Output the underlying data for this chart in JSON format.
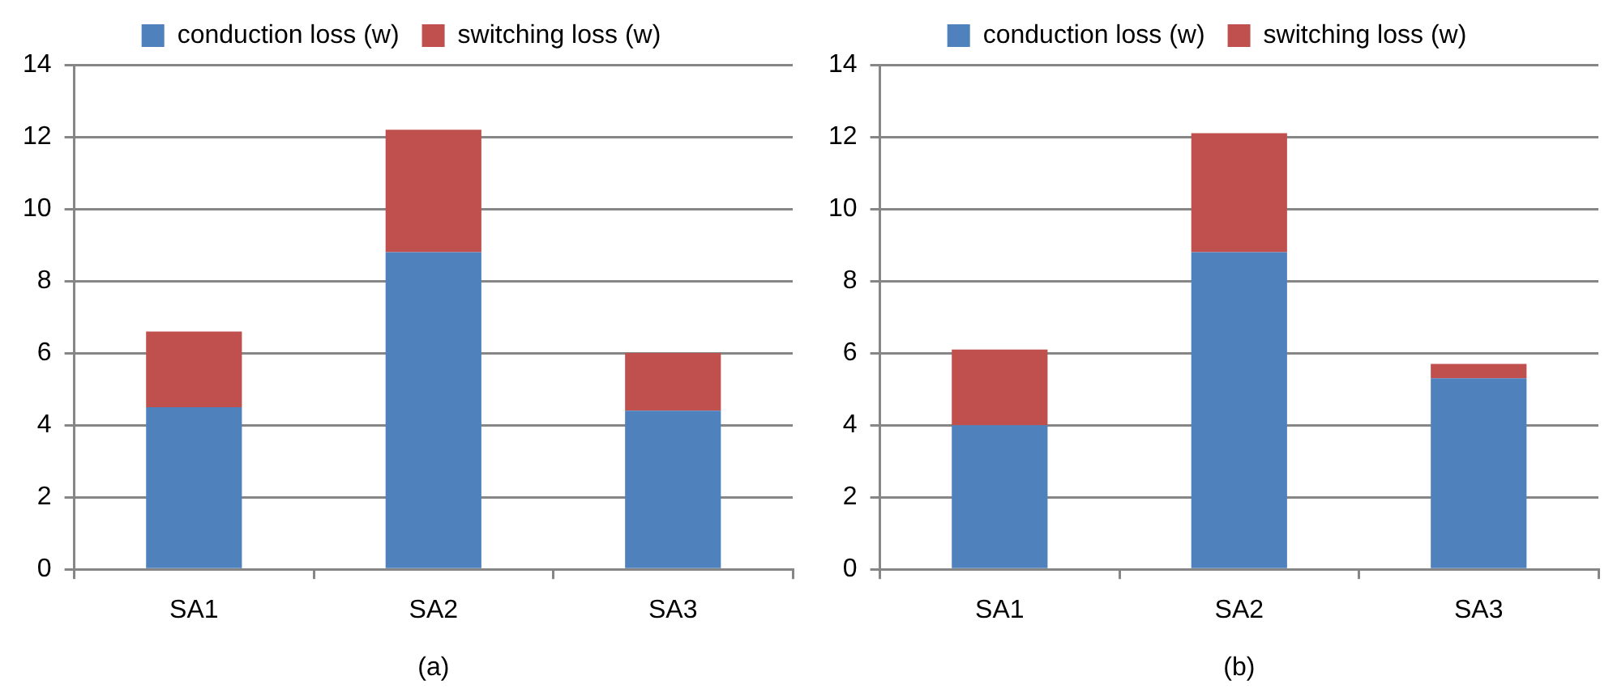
{
  "chart_data": [
    {
      "type": "bar",
      "stacked": true,
      "xlabel": "(a)",
      "categories": [
        "SA1",
        "SA2",
        "SA3"
      ],
      "series": [
        {
          "name": "conduction loss (w)",
          "color": "#4f81bd",
          "values": [
            4.5,
            8.8,
            4.4
          ]
        },
        {
          "name": "switching loss (w)",
          "color": "#c0504d",
          "values": [
            2.1,
            3.4,
            1.6
          ]
        }
      ],
      "ylim": [
        0,
        14
      ],
      "yticks": [
        0,
        2,
        4,
        6,
        8,
        10,
        12,
        14
      ],
      "grid": "y",
      "legend": "top"
    },
    {
      "type": "bar",
      "stacked": true,
      "xlabel": "(b)",
      "categories": [
        "SA1",
        "SA2",
        "SA3"
      ],
      "series": [
        {
          "name": "conduction loss (w)",
          "color": "#4f81bd",
          "values": [
            4.0,
            8.8,
            5.3
          ]
        },
        {
          "name": "switching loss (w)",
          "color": "#c0504d",
          "values": [
            2.1,
            3.3,
            0.4
          ]
        }
      ],
      "ylim": [
        0,
        14
      ],
      "yticks": [
        0,
        2,
        4,
        6,
        8,
        10,
        12,
        14
      ],
      "grid": "y",
      "legend": "top"
    }
  ]
}
